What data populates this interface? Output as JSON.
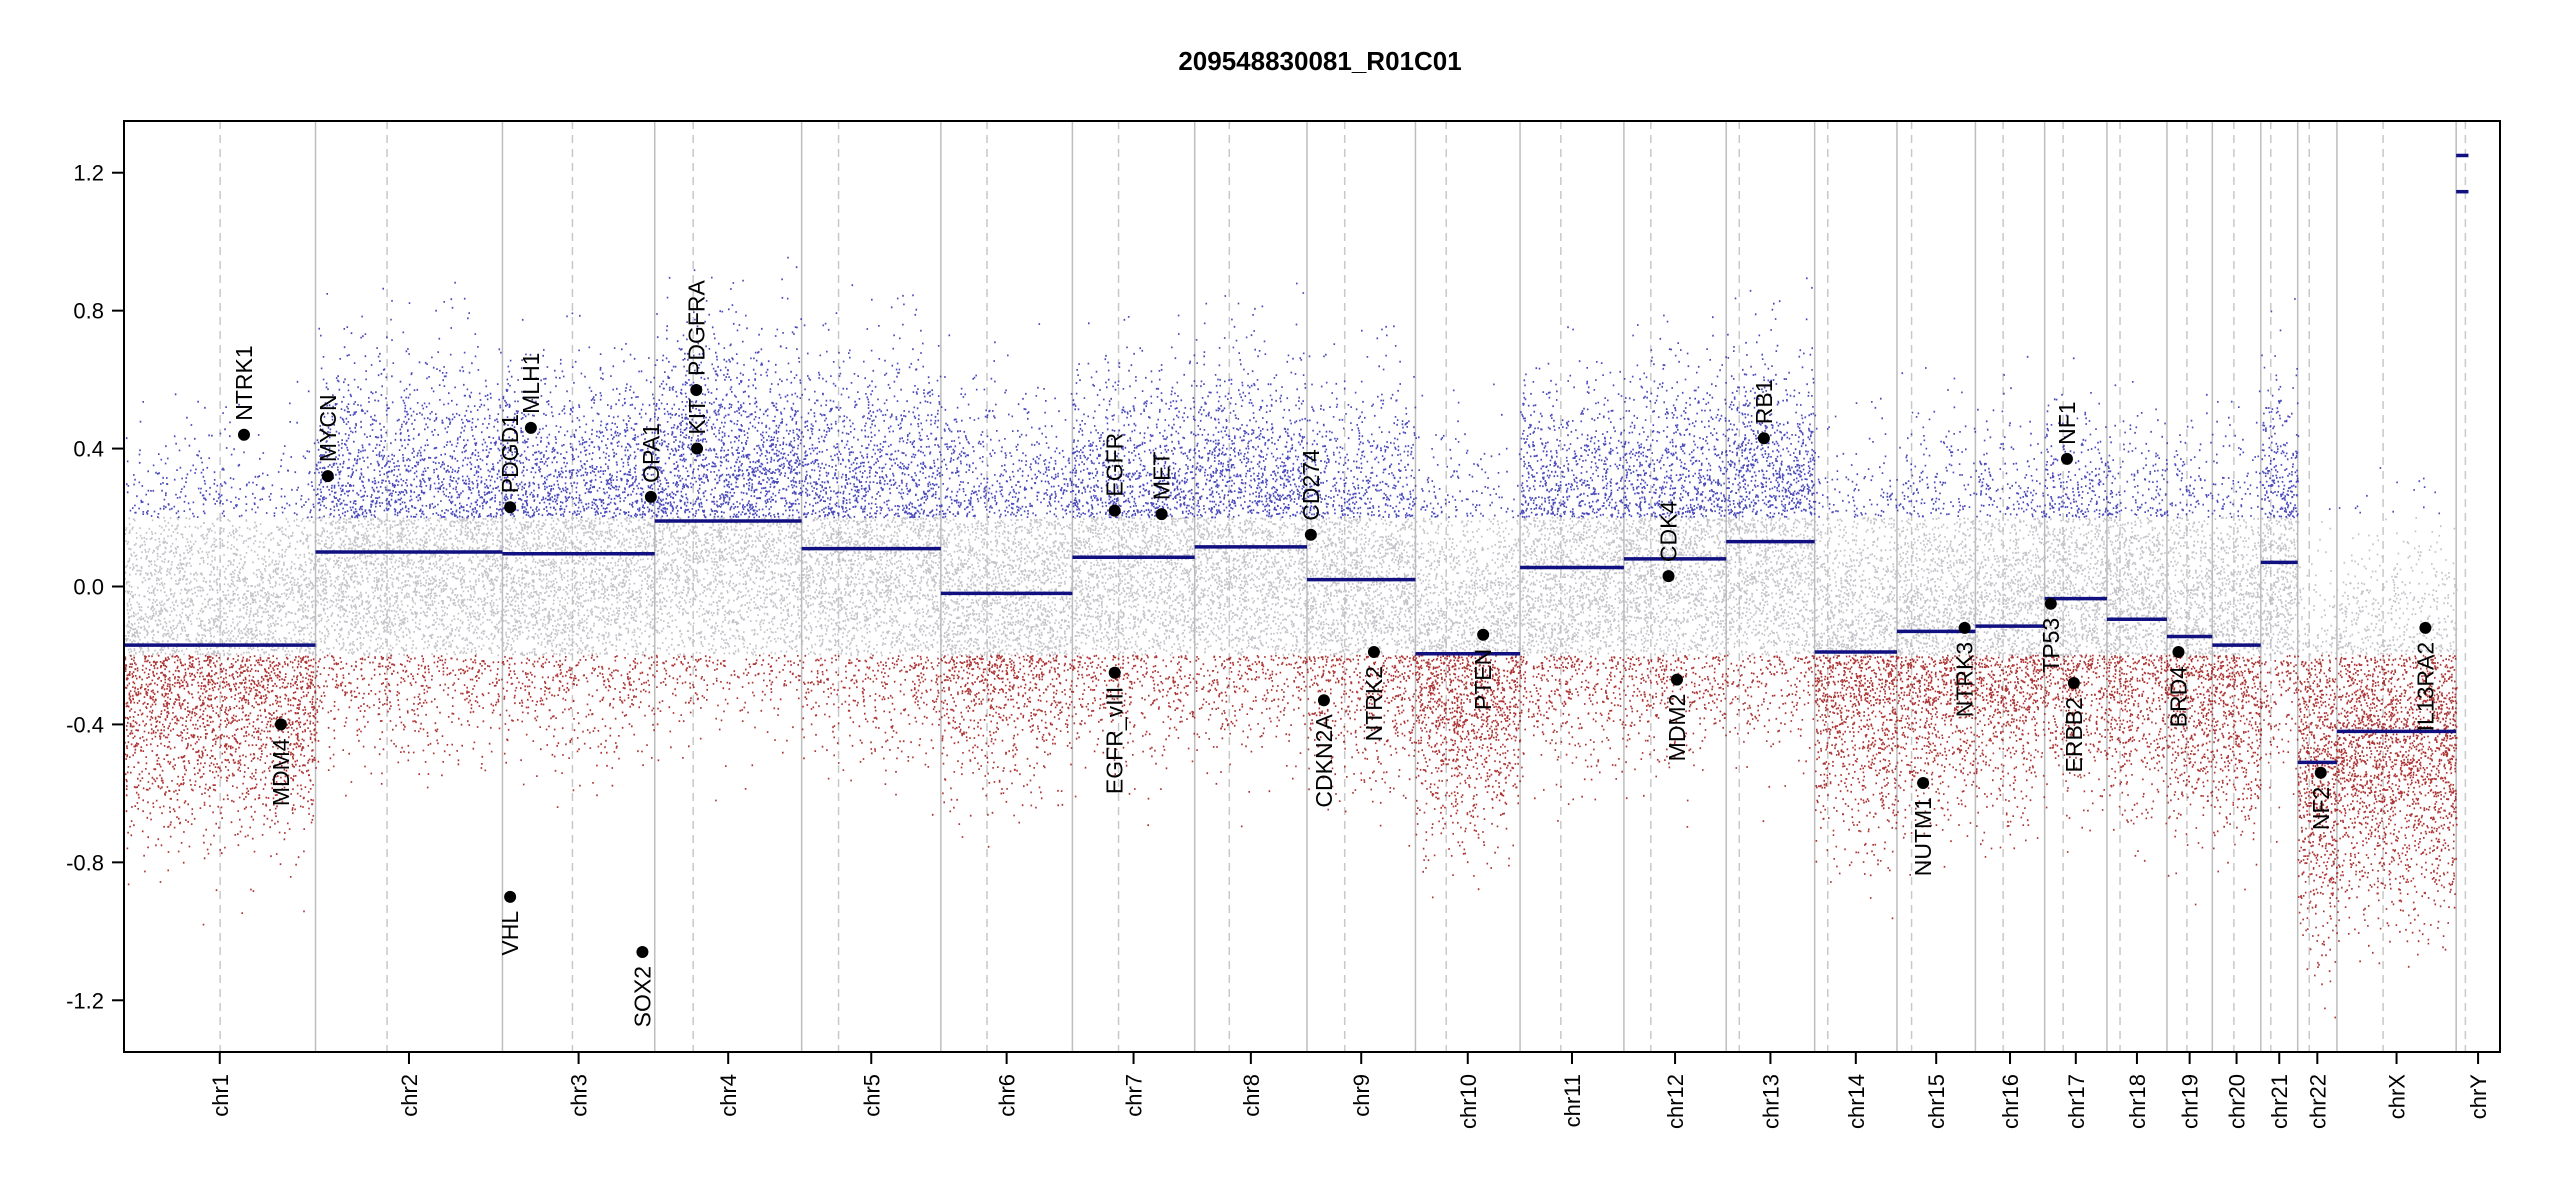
{
  "chart_data": {
    "type": "scatter",
    "title": "209548830081_R01C01",
    "xlabel": "",
    "ylabel": "",
    "ylim": [
      -1.35,
      1.35
    ],
    "y_ticks": [
      -1.2,
      -0.8,
      -0.4,
      0.0,
      0.4,
      0.8,
      1.2
    ],
    "y_tick_labels": [
      "-1.2",
      "-0.8",
      "-0.4",
      "0.0",
      "0.4",
      "0.8",
      "1.2"
    ],
    "grid": false,
    "colors": {
      "gain": "#2a2ab0",
      "loss": "#a01010",
      "neutral": "#b8b8c0",
      "segment": "#101080",
      "boundary": "#bdbdbd",
      "centromere": "#c8c8c8",
      "gene": "#000000"
    },
    "chromosomes": [
      {
        "name": "chr1",
        "size": 249
      },
      {
        "name": "chr2",
        "size": 243
      },
      {
        "name": "chr3",
        "size": 198
      },
      {
        "name": "chr4",
        "size": 191
      },
      {
        "name": "chr5",
        "size": 181
      },
      {
        "name": "chr6",
        "size": 171
      },
      {
        "name": "chr7",
        "size": 159
      },
      {
        "name": "chr8",
        "size": 146
      },
      {
        "name": "chr9",
        "size": 141
      },
      {
        "name": "chr10",
        "size": 136
      },
      {
        "name": "chr11",
        "size": 135
      },
      {
        "name": "chr12",
        "size": 133
      },
      {
        "name": "chr13",
        "size": 115
      },
      {
        "name": "chr14",
        "size": 107
      },
      {
        "name": "chr15",
        "size": 102
      },
      {
        "name": "chr16",
        "size": 90
      },
      {
        "name": "chr17",
        "size": 81
      },
      {
        "name": "chr18",
        "size": 78
      },
      {
        "name": "chr19",
        "size": 59
      },
      {
        "name": "chr20",
        "size": 63
      },
      {
        "name": "chr21",
        "size": 48
      },
      {
        "name": "chr22",
        "size": 51
      },
      {
        "name": "chrX",
        "size": 155
      },
      {
        "name": "chrY",
        "size": 57
      }
    ],
    "centromeres": [
      {
        "chr": "chr1",
        "pos": 125
      },
      {
        "chr": "chr2",
        "pos": 93
      },
      {
        "chr": "chr3",
        "pos": 91
      },
      {
        "chr": "chr4",
        "pos": 50
      },
      {
        "chr": "chr5",
        "pos": 48
      },
      {
        "chr": "chr6",
        "pos": 60
      },
      {
        "chr": "chr7",
        "pos": 60
      },
      {
        "chr": "chr8",
        "pos": 45
      },
      {
        "chr": "chr9",
        "pos": 49
      },
      {
        "chr": "chr10",
        "pos": 40
      },
      {
        "chr": "chr11",
        "pos": 53
      },
      {
        "chr": "chr12",
        "pos": 35
      },
      {
        "chr": "chr13",
        "pos": 17
      },
      {
        "chr": "chr14",
        "pos": 17
      },
      {
        "chr": "chr15",
        "pos": 19
      },
      {
        "chr": "chr16",
        "pos": 36
      },
      {
        "chr": "chr17",
        "pos": 24
      },
      {
        "chr": "chr18",
        "pos": 17
      },
      {
        "chr": "chr19",
        "pos": 26
      },
      {
        "chr": "chr20",
        "pos": 28
      },
      {
        "chr": "chr21",
        "pos": 13
      },
      {
        "chr": "chr22",
        "pos": 15
      },
      {
        "chr": "chrX",
        "pos": 60
      },
      {
        "chr": "chrY",
        "pos": 12
      }
    ],
    "segments": [
      {
        "chr": "chr1",
        "start": 0,
        "end": 249,
        "value": -0.17
      },
      {
        "chr": "chr2",
        "start": 0,
        "end": 243,
        "value": 0.1
      },
      {
        "chr": "chr3",
        "start": 0,
        "end": 198,
        "value": 0.095
      },
      {
        "chr": "chr4",
        "start": 0,
        "end": 191,
        "value": 0.19
      },
      {
        "chr": "chr5",
        "start": 0,
        "end": 181,
        "value": 0.11
      },
      {
        "chr": "chr6",
        "start": 0,
        "end": 171,
        "value": -0.02
      },
      {
        "chr": "chr7",
        "start": 0,
        "end": 159,
        "value": 0.085
      },
      {
        "chr": "chr8",
        "start": 0,
        "end": 146,
        "value": 0.115
      },
      {
        "chr": "chr9",
        "start": 0,
        "end": 141,
        "value": 0.02
      },
      {
        "chr": "chr10",
        "start": 0,
        "end": 136,
        "value": -0.195
      },
      {
        "chr": "chr11",
        "start": 0,
        "end": 135,
        "value": 0.055
      },
      {
        "chr": "chr12",
        "start": 0,
        "end": 133,
        "value": 0.08
      },
      {
        "chr": "chr13",
        "start": 0,
        "end": 115,
        "value": 0.13
      },
      {
        "chr": "chr14",
        "start": 0,
        "end": 107,
        "value": -0.19
      },
      {
        "chr": "chr15",
        "start": 0,
        "end": 102,
        "value": -0.13
      },
      {
        "chr": "chr16",
        "start": 0,
        "end": 90,
        "value": -0.115
      },
      {
        "chr": "chr17",
        "start": 0,
        "end": 81,
        "value": -0.035
      },
      {
        "chr": "chr18",
        "start": 0,
        "end": 78,
        "value": -0.095
      },
      {
        "chr": "chr19",
        "start": 0,
        "end": 59,
        "value": -0.145
      },
      {
        "chr": "chr20",
        "start": 0,
        "end": 63,
        "value": -0.17
      },
      {
        "chr": "chr21",
        "start": 0,
        "end": 48,
        "value": 0.07
      },
      {
        "chr": "chr22",
        "start": 0,
        "end": 51,
        "value": -0.51
      },
      {
        "chr": "chrX",
        "start": 0,
        "end": 155,
        "value": -0.42
      },
      {
        "chr": "chrY",
        "start": 0,
        "end": 16,
        "value": 1.25
      },
      {
        "chr": "chrY",
        "start": 0,
        "end": 16,
        "value": 1.145
      }
    ],
    "genes": [
      {
        "name": "NTRK1",
        "chr": "chr1",
        "pos": 156,
        "value": 0.44
      },
      {
        "name": "MDM4",
        "chr": "chr1",
        "pos": 204,
        "value": -0.4
      },
      {
        "name": "MYCN",
        "chr": "chr2",
        "pos": 16,
        "value": 0.32
      },
      {
        "name": "PDGD1",
        "chr": "chr3",
        "pos": 10,
        "value": 0.23
      },
      {
        "name": "VHL",
        "chr": "chr3",
        "pos": 10,
        "value": -0.9
      },
      {
        "name": "MLH1",
        "chr": "chr3",
        "pos": 37,
        "value": 0.46
      },
      {
        "name": "OPA1",
        "chr": "chr3",
        "pos": 193,
        "value": 0.26
      },
      {
        "name": "SOX2",
        "chr": "chr3",
        "pos": 182,
        "value": -1.06
      },
      {
        "name": "KIT",
        "chr": "chr4",
        "pos": 55,
        "value": 0.4
      },
      {
        "name": "PDGFRA",
        "chr": "chr4",
        "pos": 54,
        "value": 0.57
      },
      {
        "name": "EGFR",
        "chr": "chr7",
        "pos": 55,
        "value": 0.22
      },
      {
        "name": "EGFR_vIII",
        "chr": "chr7",
        "pos": 55,
        "value": -0.25
      },
      {
        "name": "MET",
        "chr": "chr7",
        "pos": 116,
        "value": 0.21
      },
      {
        "name": "CD274",
        "chr": "chr9",
        "pos": 5,
        "value": 0.15
      },
      {
        "name": "CDKN2A",
        "chr": "chr9",
        "pos": 22,
        "value": -0.33
      },
      {
        "name": "NTRK2",
        "chr": "chr9",
        "pos": 87,
        "value": -0.19
      },
      {
        "name": "PTEN",
        "chr": "chr10",
        "pos": 88,
        "value": -0.14
      },
      {
        "name": "CDK4",
        "chr": "chr12",
        "pos": 58,
        "value": 0.03
      },
      {
        "name": "MDM2",
        "chr": "chr12",
        "pos": 69,
        "value": -0.27
      },
      {
        "name": "RB1",
        "chr": "chr13",
        "pos": 49,
        "value": 0.43
      },
      {
        "name": "NUTM1",
        "chr": "chr15",
        "pos": 34,
        "value": -0.57
      },
      {
        "name": "NTRK3",
        "chr": "chr15",
        "pos": 88,
        "value": -0.12
      },
      {
        "name": "TP53",
        "chr": "chr17",
        "pos": 8,
        "value": -0.05
      },
      {
        "name": "NF1",
        "chr": "chr17",
        "pos": 29,
        "value": 0.37
      },
      {
        "name": "ERBB2",
        "chr": "chr17",
        "pos": 38,
        "value": -0.28
      },
      {
        "name": "BRD4",
        "chr": "chr19",
        "pos": 15,
        "value": -0.19
      },
      {
        "name": "NF2",
        "chr": "chr22",
        "pos": 30,
        "value": -0.54
      },
      {
        "name": "IL13RA2",
        "chr": "chrX",
        "pos": 115,
        "value": -0.12
      }
    ]
  }
}
